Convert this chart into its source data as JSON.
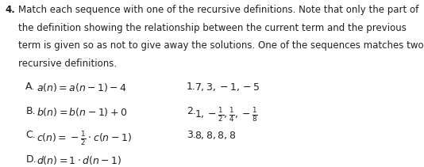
{
  "background_color": "#ffffff",
  "fig_width": 5.34,
  "fig_height": 2.11,
  "dpi": 100,
  "question_number": "4.",
  "question_text_lines": [
    "Match each sequence with one of the recursive definitions. Note that only the part of",
    "the definition showing the relationship between the current term and the previous",
    "term is given so as not to give away the solutions. One of the sequences matches two",
    "recursive definitions."
  ],
  "left_items": [
    {
      "label": "A.",
      "formula": "$a(n) = a(n-1) - 4$"
    },
    {
      "label": "B.",
      "formula": "$b(n) = b(n-1) + 0$"
    },
    {
      "label": "C.",
      "formula": "$c(n) = -\\frac{1}{2} \\cdot c(n-1)$"
    },
    {
      "label": "D.",
      "formula": "$d(n) = 1 \\cdot d(n-1)$"
    }
  ],
  "right_items": [
    {
      "label": "1.",
      "sequence": "$7, 3, -1, -5$"
    },
    {
      "label": "2.",
      "sequence": "$1, -\\frac{1}{2}, \\frac{1}{4}, -\\frac{1}{8}$"
    },
    {
      "label": "3.",
      "sequence": "$8, 8, 8, 8$"
    }
  ],
  "font_size_question": 8.5,
  "font_size_items": 9.0,
  "text_color": "#231f20",
  "font_family": "DejaVu Sans"
}
